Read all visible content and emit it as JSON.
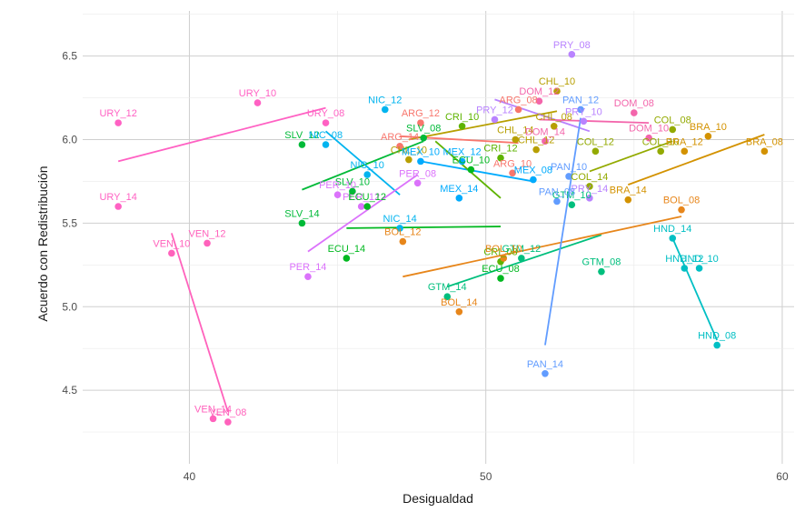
{
  "chart_data": {
    "type": "scatter",
    "title": "",
    "xlabel": "Desigualdad",
    "ylabel": "Acuerdo con Redistribución",
    "xlim": [
      36.4,
      60.4
    ],
    "ylim": [
      4.06,
      6.77
    ],
    "xticks": [
      40,
      50,
      60
    ],
    "yticks": [
      4.5,
      5.0,
      5.5,
      6.0,
      6.5
    ],
    "xtick_labels": [
      "40",
      "50",
      "60"
    ],
    "ytick_labels": [
      "4.5",
      "5.0",
      "5.5",
      "6.0",
      "6.5"
    ],
    "grid": true,
    "legend": "none",
    "colors": {
      "ARG": "#F8766D",
      "BOL": "#E7861B",
      "BRA": "#D39200",
      "CHL": "#B79F00",
      "COL": "#93AA00",
      "CRI": "#5EB300",
      "DOM": "#F365AB",
      "ECU": "#00B81F",
      "GTM": "#00BF7D",
      "HND": "#00BFC4",
      "MEX": "#00ABFD",
      "NIC": "#00B4EF",
      "PAN": "#619CFF",
      "PER": "#DB72FB",
      "PRY": "#B983FF",
      "SLV": "#00BA38",
      "URY": "#FF61C3",
      "VEN": "#FF62BC"
    },
    "points": [
      {
        "label": "URY_12",
        "country": "URY",
        "x": 37.6,
        "y": 6.1
      },
      {
        "label": "URY_10",
        "country": "URY",
        "x": 42.3,
        "y": 6.22
      },
      {
        "label": "URY_08",
        "country": "URY",
        "x": 44.6,
        "y": 6.1
      },
      {
        "label": "URY_14",
        "country": "URY",
        "x": 37.6,
        "y": 5.6
      },
      {
        "label": "VEN_10",
        "country": "VEN",
        "x": 39.4,
        "y": 5.32
      },
      {
        "label": "VEN_12",
        "country": "VEN",
        "x": 40.6,
        "y": 5.38
      },
      {
        "label": "VEN_14",
        "country": "VEN",
        "x": 40.8,
        "y": 4.33
      },
      {
        "label": "VEN_08",
        "country": "VEN",
        "x": 41.3,
        "y": 4.31
      },
      {
        "label": "SLV_12",
        "country": "SLV",
        "x": 43.8,
        "y": 5.97
      },
      {
        "label": "SLV_10",
        "country": "SLV",
        "x": 45.5,
        "y": 5.69
      },
      {
        "label": "SLV_14",
        "country": "SLV",
        "x": 43.8,
        "y": 5.5
      },
      {
        "label": "SLV_08",
        "country": "SLV",
        "x": 47.9,
        "y": 6.01
      },
      {
        "label": "NIC_08",
        "country": "NIC",
        "x": 44.6,
        "y": 5.97
      },
      {
        "label": "NIC_12",
        "country": "NIC",
        "x": 46.6,
        "y": 6.18
      },
      {
        "label": "NIC_10",
        "country": "NIC",
        "x": 46.0,
        "y": 5.79
      },
      {
        "label": "NIC_14",
        "country": "NIC",
        "x": 47.1,
        "y": 5.47
      },
      {
        "label": "PER_10",
        "country": "PER",
        "x": 45.0,
        "y": 5.67
      },
      {
        "label": "PER_12",
        "country": "PER",
        "x": 45.8,
        "y": 5.6
      },
      {
        "label": "PER_08",
        "country": "PER",
        "x": 47.7,
        "y": 5.74
      },
      {
        "label": "PER_14",
        "country": "PER",
        "x": 44.0,
        "y": 5.18
      },
      {
        "label": "ECU_12",
        "country": "ECU",
        "x": 46.0,
        "y": 5.6
      },
      {
        "label": "ECU_14",
        "country": "ECU",
        "x": 45.3,
        "y": 5.29
      },
      {
        "label": "ECU_10",
        "country": "ECU",
        "x": 49.5,
        "y": 5.82
      },
      {
        "label": "ECU_08",
        "country": "ECU",
        "x": 50.5,
        "y": 5.17
      },
      {
        "label": "ARG_12",
        "country": "ARG",
        "x": 47.8,
        "y": 6.1
      },
      {
        "label": "ARG_14",
        "country": "ARG",
        "x": 47.1,
        "y": 5.96
      },
      {
        "label": "ARG_10",
        "country": "ARG",
        "x": 50.9,
        "y": 5.8
      },
      {
        "label": "ARG_08",
        "country": "ARG",
        "x": 51.1,
        "y": 6.18
      },
      {
        "label": "CHL_10",
        "country": "CHL",
        "x": 47.4,
        "y": 5.88
      },
      {
        "label": "CHL_14",
        "country": "CHL",
        "x": 51.0,
        "y": 6.0
      },
      {
        "label": "CHL_12",
        "country": "CHL",
        "x": 51.7,
        "y": 5.94
      },
      {
        "label": "CHL_08",
        "country": "CHL",
        "x": 52.3,
        "y": 6.08
      },
      {
        "label": "CHL_10",
        "country": "CHL",
        "x": 52.4,
        "y": 6.29
      },
      {
        "label": "MEX_10",
        "country": "MEX",
        "x": 47.8,
        "y": 5.87
      },
      {
        "label": "MEX_12",
        "country": "MEX",
        "x": 49.2,
        "y": 5.87
      },
      {
        "label": "MEX_14",
        "country": "MEX",
        "x": 49.1,
        "y": 5.65
      },
      {
        "label": "MEX_08",
        "country": "MEX",
        "x": 51.6,
        "y": 5.76
      },
      {
        "label": "CRI_10",
        "country": "CRI",
        "x": 49.2,
        "y": 6.08
      },
      {
        "label": "CRI_12",
        "country": "CRI",
        "x": 50.5,
        "y": 5.89
      },
      {
        "label": "CRI_08",
        "country": "CRI",
        "x": 50.5,
        "y": 5.27
      },
      {
        "label": "GTM_12",
        "country": "GTM",
        "x": 51.2,
        "y": 5.29
      },
      {
        "label": "GTM_14",
        "country": "GTM",
        "x": 48.7,
        "y": 5.06
      },
      {
        "label": "GTM_10",
        "country": "GTM",
        "x": 52.9,
        "y": 5.61
      },
      {
        "label": "GTM_08",
        "country": "GTM",
        "x": 53.9,
        "y": 5.21
      },
      {
        "label": "BOL_12",
        "country": "BOL",
        "x": 47.2,
        "y": 5.39
      },
      {
        "label": "BOL_10",
        "country": "BOL",
        "x": 50.6,
        "y": 5.29
      },
      {
        "label": "BOL_14",
        "country": "BOL",
        "x": 49.1,
        "y": 4.97
      },
      {
        "label": "BOL_08",
        "country": "BOL",
        "x": 56.6,
        "y": 5.58
      },
      {
        "label": "PRY_12",
        "country": "PRY",
        "x": 50.3,
        "y": 6.12
      },
      {
        "label": "PRY_10",
        "country": "PRY",
        "x": 53.3,
        "y": 6.11
      },
      {
        "label": "PRY_08",
        "country": "PRY",
        "x": 52.9,
        "y": 6.51
      },
      {
        "label": "PRY_14",
        "country": "PRY",
        "x": 53.5,
        "y": 5.65
      },
      {
        "label": "DOM_12",
        "country": "DOM",
        "x": 51.8,
        "y": 6.23
      },
      {
        "label": "DOM_14",
        "country": "DOM",
        "x": 52.0,
        "y": 5.99
      },
      {
        "label": "DOM_08",
        "country": "DOM",
        "x": 55.0,
        "y": 6.16
      },
      {
        "label": "DOM_10",
        "country": "DOM",
        "x": 55.5,
        "y": 6.01
      },
      {
        "label": "PAN_12",
        "country": "PAN",
        "x": 53.2,
        "y": 6.18
      },
      {
        "label": "PAN_10",
        "country": "PAN",
        "x": 52.8,
        "y": 5.78
      },
      {
        "label": "PAN_08",
        "country": "PAN",
        "x": 52.4,
        "y": 5.63
      },
      {
        "label": "PAN_14",
        "country": "PAN",
        "x": 52.0,
        "y": 4.6
      },
      {
        "label": "COL_12",
        "country": "COL",
        "x": 53.7,
        "y": 5.93
      },
      {
        "label": "COL_14",
        "country": "COL",
        "x": 53.5,
        "y": 5.72
      },
      {
        "label": "COL_08",
        "country": "COL",
        "x": 56.3,
        "y": 6.06
      },
      {
        "label": "COL_10",
        "country": "COL",
        "x": 55.9,
        "y": 5.93
      },
      {
        "label": "BRA_12",
        "country": "BRA",
        "x": 56.7,
        "y": 5.93
      },
      {
        "label": "BRA_10",
        "country": "BRA",
        "x": 57.5,
        "y": 6.02
      },
      {
        "label": "BRA_08",
        "country": "BRA",
        "x": 59.4,
        "y": 5.93
      },
      {
        "label": "BRA_14",
        "country": "BRA",
        "x": 54.8,
        "y": 5.64
      },
      {
        "label": "HND_14",
        "country": "HND",
        "x": 56.3,
        "y": 5.41
      },
      {
        "label": "HND_12",
        "country": "HND",
        "x": 56.7,
        "y": 5.23
      },
      {
        "label": "HND_10",
        "country": "HND",
        "x": 57.2,
        "y": 5.23
      },
      {
        "label": "HND_08",
        "country": "HND",
        "x": 57.8,
        "y": 4.77
      }
    ],
    "trend_lines": [
      {
        "country": "URY",
        "x": [
          37.6,
          44.6
        ],
        "y": [
          5.87,
          6.19
        ]
      },
      {
        "country": "VEN",
        "x": [
          39.4,
          41.3
        ],
        "y": [
          5.44,
          4.37
        ]
      },
      {
        "country": "SLV",
        "x": [
          43.8,
          47.9
        ],
        "y": [
          5.7,
          5.99
        ]
      },
      {
        "country": "NIC",
        "x": [
          44.6,
          47.1
        ],
        "y": [
          6.05,
          5.67
        ]
      },
      {
        "country": "PER",
        "x": [
          44.0,
          47.7
        ],
        "y": [
          5.33,
          5.79
        ]
      },
      {
        "country": "ECU",
        "x": [
          45.3,
          50.5
        ],
        "y": [
          5.47,
          5.48
        ]
      },
      {
        "country": "ARG",
        "x": [
          47.1,
          51.1
        ],
        "y": [
          6.02,
          5.98
        ]
      },
      {
        "country": "CHL",
        "x": [
          47.4,
          52.4
        ],
        "y": [
          6.0,
          6.17
        ]
      },
      {
        "country": "MEX",
        "x": [
          47.8,
          51.6
        ],
        "y": [
          5.87,
          5.75
        ]
      },
      {
        "country": "CRI",
        "x": [
          48.3,
          50.5
        ],
        "y": [
          5.99,
          5.65
        ]
      },
      {
        "country": "GTM",
        "x": [
          48.7,
          53.9
        ],
        "y": [
          5.12,
          5.43
        ]
      },
      {
        "country": "BOL",
        "x": [
          47.2,
          56.6
        ],
        "y": [
          5.18,
          5.54
        ]
      },
      {
        "country": "PRY",
        "x": [
          50.3,
          53.5
        ],
        "y": [
          6.24,
          6.05
        ]
      },
      {
        "country": "DOM",
        "x": [
          51.8,
          55.5
        ],
        "y": [
          6.12,
          6.1
        ]
      },
      {
        "country": "PAN",
        "x": [
          52.0,
          53.2
        ],
        "y": [
          4.77,
          6.13
        ]
      },
      {
        "country": "COL",
        "x": [
          53.5,
          56.3
        ],
        "y": [
          5.81,
          5.99
        ]
      },
      {
        "country": "BRA",
        "x": [
          54.8,
          59.4
        ],
        "y": [
          5.73,
          6.03
        ]
      },
      {
        "country": "HND",
        "x": [
          56.3,
          57.8
        ],
        "y": [
          5.41,
          4.8
        ]
      }
    ]
  }
}
